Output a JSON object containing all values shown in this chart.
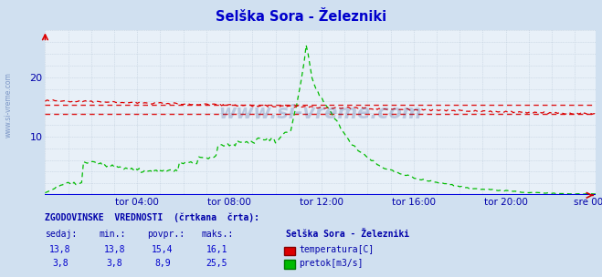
{
  "title": "Selška Sora - Železniki",
  "bg_color": "#d0e0f0",
  "plot_bg_color": "#e8f0f8",
  "grid_color": "#b8c8d8",
  "title_color": "#0000cc",
  "tick_color": "#0000aa",
  "watermark": "www.si-vreme.com",
  "xlabels": [
    "tor 04:00",
    "tor 08:00",
    "tor 12:00",
    "tor 16:00",
    "tor 20:00",
    "sre 00:00"
  ],
  "xtick_pos": [
    48,
    96,
    144,
    192,
    240,
    287
  ],
  "ylim": [
    0,
    28
  ],
  "yticks": [
    10,
    20
  ],
  "temp_color": "#dd0000",
  "flow_color": "#00bb00",
  "temp_avg": 15.4,
  "temp_min": 13.8,
  "temp_max": 16.1,
  "temp_current": 13.8,
  "flow_avg": 8.9,
  "flow_min": 3.8,
  "flow_max": 25.5,
  "flow_current": 3.8,
  "legend_title": "Selška Sora - Železniki",
  "footer_label": "ZGODOVINSKE  VREDNOSTI  (črtkana  črta):",
  "col_headers": [
    "sedaj:",
    "min.:",
    "povpr.:",
    "maks.:"
  ],
  "footer_color": "#0000aa",
  "footer_data_color": "#0000cc",
  "n_points": 288
}
